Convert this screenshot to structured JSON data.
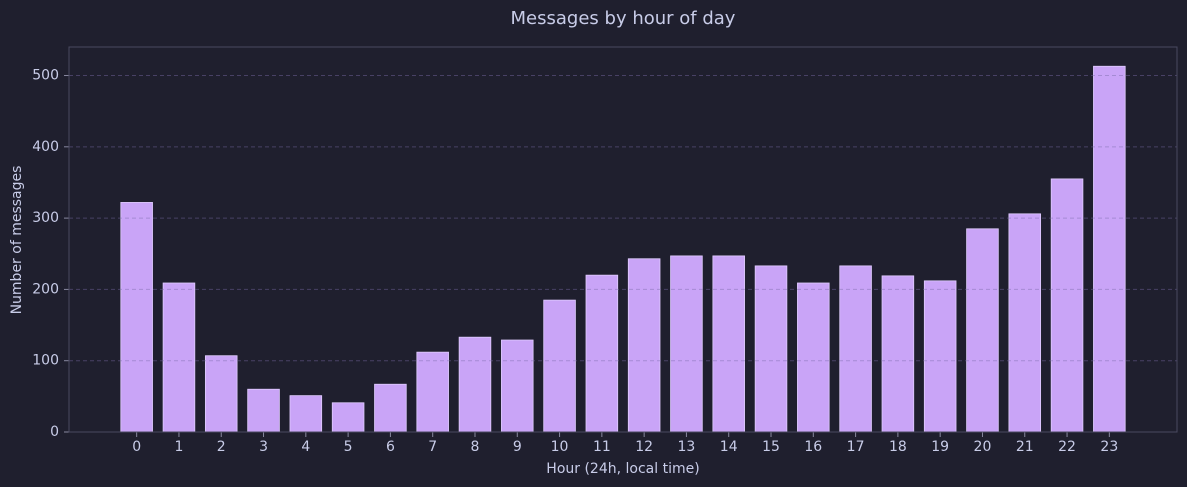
{
  "chart_data": {
    "type": "bar",
    "title": "Messages by hour of day",
    "x_label": "Hour (24h, local time)",
    "y_label": "Number of messages",
    "x": [
      0,
      1,
      2,
      3,
      4,
      5,
      6,
      7,
      8,
      9,
      10,
      11,
      12,
      13,
      14,
      15,
      16,
      17,
      18,
      19,
      20,
      21,
      22,
      23
    ],
    "values": [
      322,
      209,
      107,
      60,
      51,
      41,
      67,
      112,
      133,
      129,
      185,
      220,
      243,
      247,
      247,
      233,
      209,
      233,
      219,
      212,
      285,
      306,
      355,
      513
    ],
    "color": "#c9a4f7",
    "xlim": [
      -1.6,
      24.6
    ],
    "xticks": [
      0,
      1,
      2,
      3,
      4,
      5,
      6,
      7,
      8,
      9,
      10,
      11,
      12,
      13,
      14,
      15,
      16,
      17,
      18,
      19,
      20,
      21,
      22,
      23
    ],
    "ylim": [
      0,
      540
    ],
    "yticks": [
      0,
      100,
      200,
      300,
      400,
      500
    ],
    "grid": true
  }
}
